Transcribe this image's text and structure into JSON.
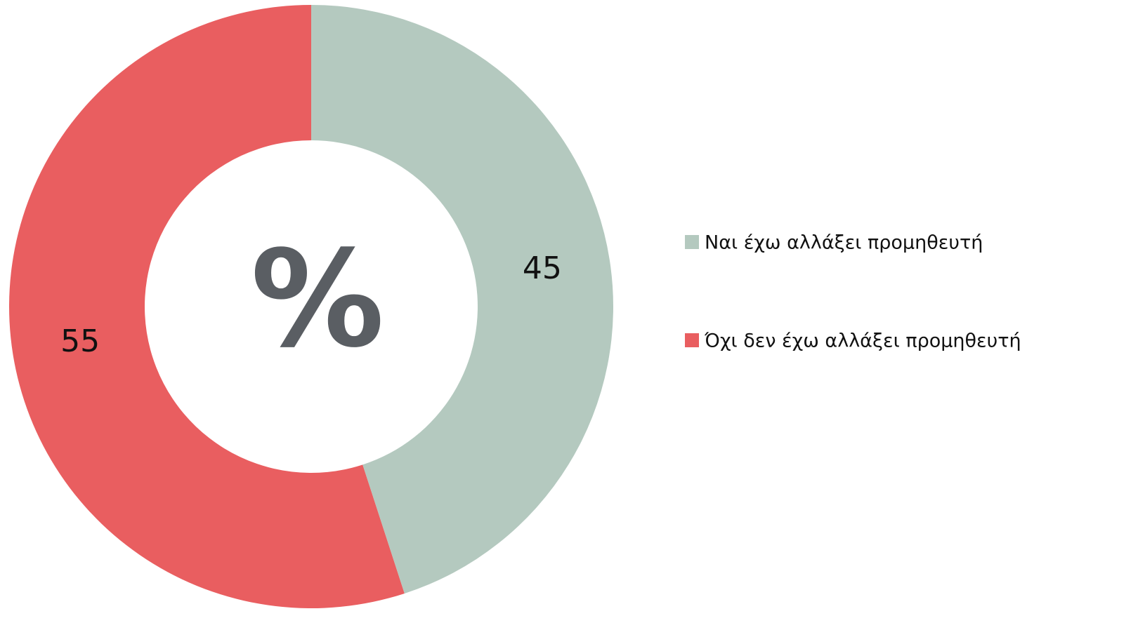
{
  "chart_data": {
    "type": "donut",
    "categories": [
      "Ναι έχω αλλάξει προμηθευτή",
      "Όχι δεν έχω αλλάξει προμηθευτή"
    ],
    "values": [
      45,
      55
    ],
    "colors": [
      "#b4c9bf",
      "#e95e60"
    ],
    "center_label": "%",
    "legend": "right"
  }
}
